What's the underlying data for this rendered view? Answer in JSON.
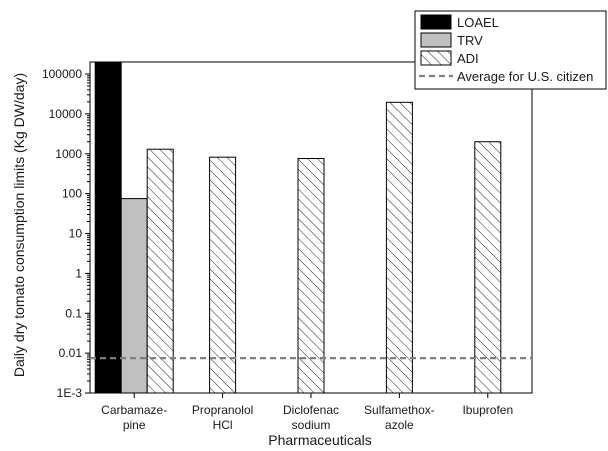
{
  "chart_data": {
    "type": "bar",
    "title": "",
    "xlabel": "Pharmaceuticals",
    "ylabel": "Daily dry tomato consumption limits (Kg DW/day)",
    "y_scale": "log",
    "ylim": [
      0.001,
      200000
    ],
    "y_ticks": [
      0.001,
      0.01,
      0.1,
      1,
      10,
      100,
      1000,
      10000,
      100000
    ],
    "y_tick_labels": [
      "1E-3",
      "0.01",
      "0.1",
      "1",
      "10",
      "100",
      "1000",
      "10000",
      "100000"
    ],
    "categories": [
      [
        "Carbamaze-",
        "pine"
      ],
      [
        "Propranolol",
        "HCl"
      ],
      [
        "Diclofenac",
        "sodium"
      ],
      [
        "Sulfamethox-",
        "azole"
      ],
      [
        "Ibuprofen"
      ]
    ],
    "series": [
      {
        "name": "LOAEL",
        "fill": "solid",
        "color": "#000000",
        "values": [
          200000,
          null,
          null,
          null,
          null
        ]
      },
      {
        "name": "TRV",
        "fill": "solid",
        "color": "#c0c0c0",
        "values": [
          75,
          null,
          null,
          null,
          null
        ]
      },
      {
        "name": "ADI",
        "fill": "hatch",
        "color": "#ffffff",
        "values": [
          1300,
          820,
          760,
          19500,
          2000
        ]
      }
    ],
    "reference_lines": [
      {
        "name": "Average for U.S. citizen",
        "y": 0.0075,
        "style": "dashed",
        "color": "#808080"
      }
    ],
    "legend": {
      "position": "top-right",
      "entries": [
        "LOAEL",
        "TRV",
        "ADI",
        "Average for U.S. citizen"
      ]
    },
    "grid": false
  }
}
